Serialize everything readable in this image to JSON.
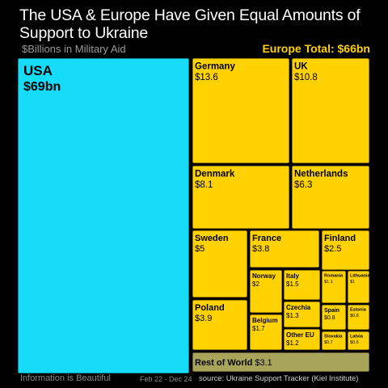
{
  "header": {
    "title": "The USA & Europe Have Given Equal Amounts of Support to Ukraine",
    "subtitle": "$Billions in Military Aid",
    "europe_total": "Europe Total: $66bn"
  },
  "footer": {
    "brand": "Information is Beautiful",
    "period": "Feb 22 - Dec 24",
    "source": "source: Ukraine Support Tracker (Kiel Institute)"
  },
  "colors": {
    "usa": "#16dcfa",
    "europe": "#ffd200",
    "rest_of_world": "#a8a55a",
    "background": "#000000"
  },
  "chart_data": {
    "type": "treemap",
    "title": "The USA & Europe Have Given Equal Amounts of Support to Ukraine",
    "subtitle": "$Billions in Military Aid",
    "unit": "$bn",
    "groups": [
      {
        "name": "USA",
        "label": "$69bn",
        "total": 69
      },
      {
        "name": "Europe",
        "label": "Europe Total: $66bn",
        "total": 66
      },
      {
        "name": "Rest of World",
        "total": 3.1
      }
    ],
    "items": [
      {
        "name": "USA",
        "value": 69,
        "label": "$69bn",
        "group": "USA"
      },
      {
        "name": "Germany",
        "value": 13.6,
        "label": "$13.6",
        "group": "Europe"
      },
      {
        "name": "UK",
        "value": 10.8,
        "label": "$10.8",
        "group": "Europe"
      },
      {
        "name": "Denmark",
        "value": 8.1,
        "label": "$8.1",
        "group": "Europe"
      },
      {
        "name": "Netherlands",
        "value": 6.3,
        "label": "$6.3",
        "group": "Europe"
      },
      {
        "name": "Sweden",
        "value": 5,
        "label": "$5",
        "group": "Europe"
      },
      {
        "name": "France",
        "value": 3.8,
        "label": "$3.8",
        "group": "Europe"
      },
      {
        "name": "Finland",
        "value": 2.5,
        "label": "$2.5",
        "group": "Europe"
      },
      {
        "name": "Poland",
        "value": 3.9,
        "label": "$3.9",
        "group": "Europe"
      },
      {
        "name": "Norway",
        "value": 2,
        "label": "$2",
        "group": "Europe"
      },
      {
        "name": "Italy",
        "value": 1.5,
        "label": "$1.5",
        "group": "Europe"
      },
      {
        "name": "Belgium",
        "value": 1.7,
        "label": "$1.7",
        "group": "Europe"
      },
      {
        "name": "Czechia",
        "value": 1.3,
        "label": "$1.3",
        "group": "Europe"
      },
      {
        "name": "Other EU",
        "value": 1.2,
        "label": "$1.2",
        "group": "Europe"
      },
      {
        "name": "Romania",
        "value": 1.1,
        "label": "$1.1",
        "group": "Europe"
      },
      {
        "name": "Lithuania",
        "value": 1,
        "label": "$1",
        "group": "Europe"
      },
      {
        "name": "Spain",
        "value": 0.8,
        "label": "$0.8",
        "group": "Europe"
      },
      {
        "name": "Estonia",
        "value": 0.8,
        "label": "$0.8",
        "group": "Europe"
      },
      {
        "name": "Slovakia",
        "value": 0.7,
        "label": "$0.7",
        "group": "Europe"
      },
      {
        "name": "Latvia",
        "value": 0.5,
        "label": "$0.5",
        "group": "Europe"
      },
      {
        "name": "Rest of World",
        "value": 3.1,
        "label": "$3.1",
        "group": "Rest of World"
      }
    ]
  }
}
